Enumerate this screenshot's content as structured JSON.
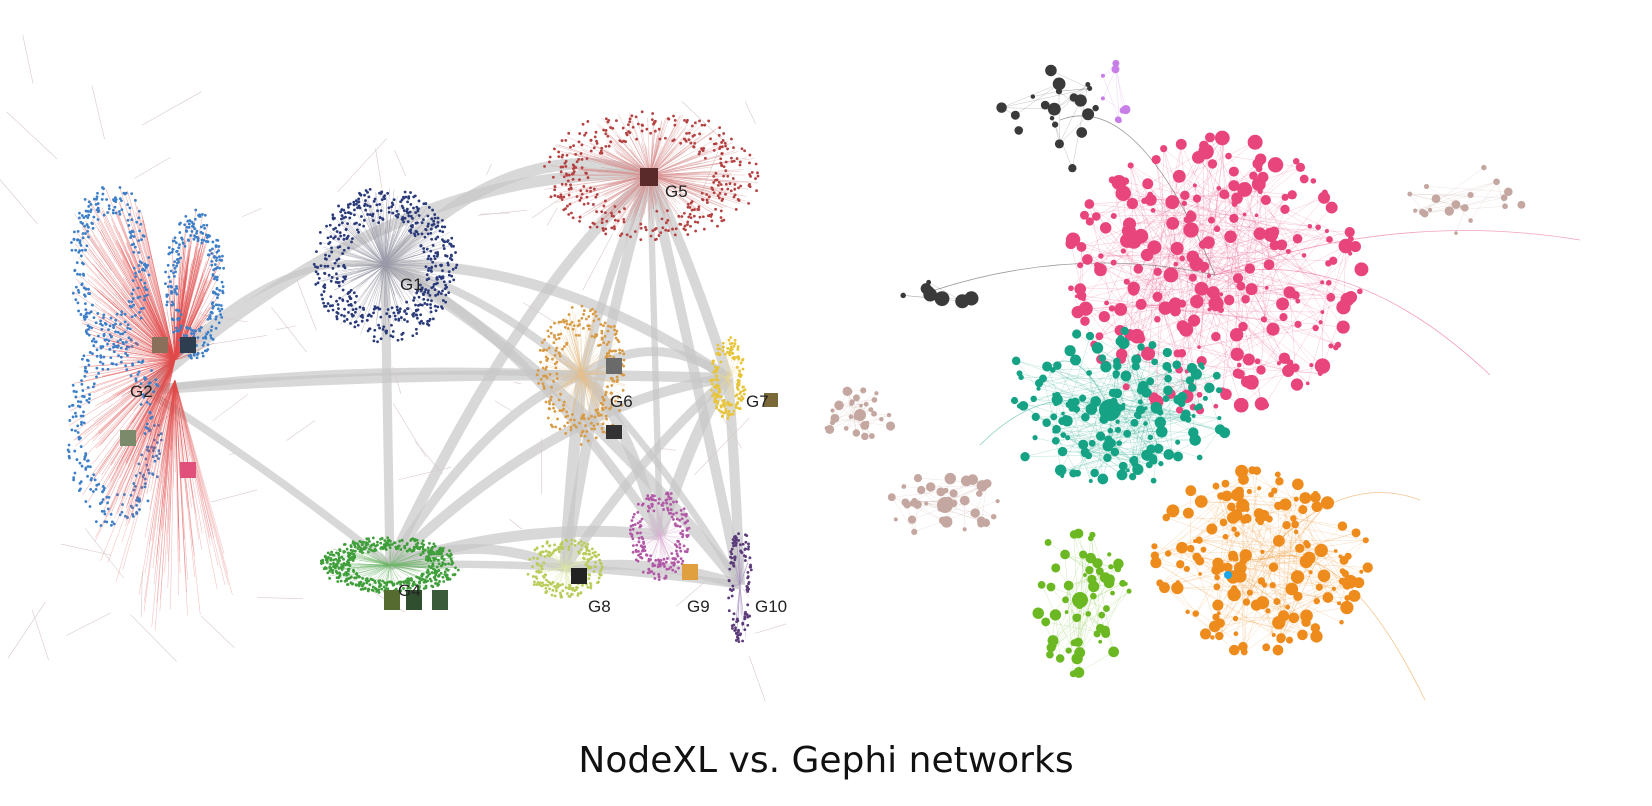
{
  "caption": "NodeXL vs. Gephi networks",
  "nodexl": {
    "groups": [
      {
        "id": "g1",
        "label": "G1",
        "color": "#2a3a7a"
      },
      {
        "id": "g2",
        "label": "G2",
        "color": "#3d7fc8"
      },
      {
        "id": "g4",
        "label": "G4",
        "color": "#3f9f3a"
      },
      {
        "id": "g5",
        "label": "G5",
        "color": "#b54242"
      },
      {
        "id": "g6",
        "label": "G6",
        "color": "#d79a45"
      },
      {
        "id": "g7",
        "label": "G7",
        "color": "#e7c43a"
      },
      {
        "id": "g8",
        "label": "G8",
        "color": "#b9cc5a"
      },
      {
        "id": "g9",
        "label": "G9",
        "color": "#b158a6"
      },
      {
        "id": "g10",
        "label": "G10",
        "color": "#5a3a78"
      }
    ],
    "edge_color": "#c8c8c8",
    "red_edge_color": "#e04a4a"
  },
  "gephi": {
    "communities": [
      {
        "id": "pink",
        "color": "#e8457d"
      },
      {
        "id": "teal",
        "color": "#16a385"
      },
      {
        "id": "orange",
        "color": "#ee8b1d"
      },
      {
        "id": "green",
        "color": "#6cb823"
      },
      {
        "id": "dark",
        "color": "#3a3a3a"
      },
      {
        "id": "beige",
        "color": "#c4a7a0"
      },
      {
        "id": "purple",
        "color": "#c77ee6"
      },
      {
        "id": "blue",
        "color": "#1ea7e6"
      }
    ]
  }
}
